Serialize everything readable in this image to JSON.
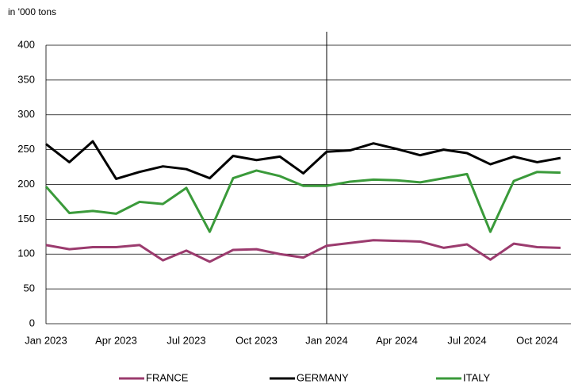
{
  "chart_data": {
    "type": "line",
    "y_label": "in '000 tons",
    "categories": [
      "Jan 2023",
      null,
      null,
      "Apr 2023",
      null,
      null,
      "Jul 2023",
      null,
      null,
      "Oct 2023",
      null,
      null,
      "Jan 2024",
      null,
      null,
      "Apr 2024",
      null,
      null,
      "Jul 2024",
      null,
      null,
      "Oct 2024",
      null
    ],
    "series": [
      {
        "name": "FRANCE",
        "color": "#9b3b6e",
        "values": [
          113,
          107,
          110,
          110,
          113,
          91,
          105,
          89,
          106,
          107,
          100,
          95,
          112,
          116,
          120,
          119,
          118,
          109,
          114,
          92,
          115,
          110,
          109
        ]
      },
      {
        "name": "GERMANY",
        "color": "#000000",
        "values": [
          258,
          232,
          262,
          208,
          218,
          226,
          222,
          209,
          241,
          235,
          240,
          216,
          247,
          249,
          259,
          251,
          242,
          250,
          245,
          229,
          240,
          232,
          238
        ]
      },
      {
        "name": "ITALY",
        "color": "#3a9a3a",
        "values": [
          197,
          159,
          162,
          158,
          175,
          172,
          195,
          132,
          209,
          220,
          212,
          198,
          198,
          204,
          207,
          206,
          203,
          209,
          215,
          132,
          205,
          218,
          217
        ]
      }
    ],
    "ylim": [
      0,
      400
    ],
    "yticks": [
      0,
      50,
      100,
      150,
      200,
      250,
      300,
      350,
      400
    ],
    "grid": true
  }
}
